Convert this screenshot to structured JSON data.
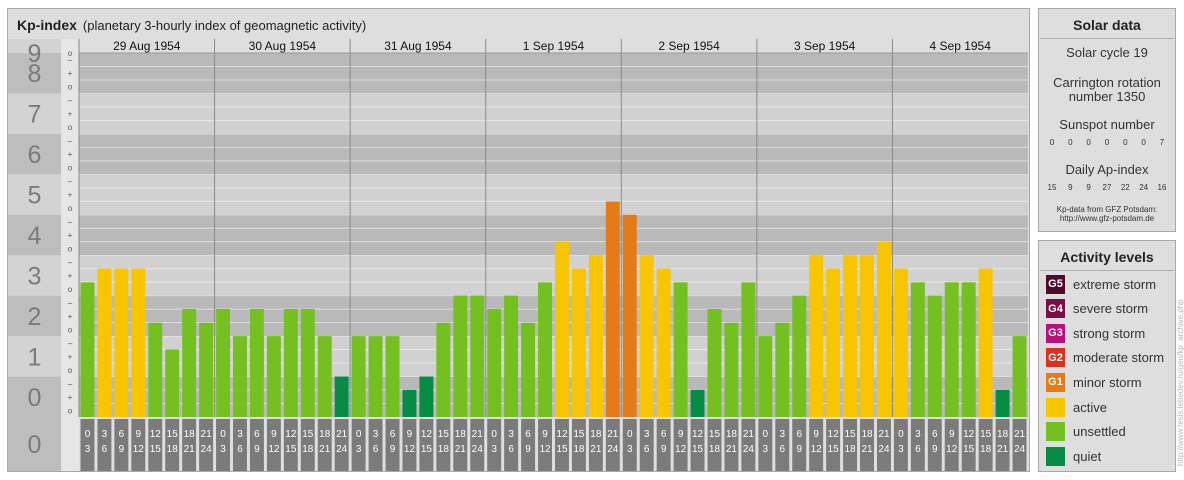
{
  "header": {
    "title": "Kp-index",
    "subtitle": "(planetary 3-hourly index of geomagnetic activity)"
  },
  "chart_data": {
    "type": "bar",
    "title": "Kp-index",
    "subtitle": "(planetary 3-hourly index of geomagnetic activity)",
    "ylim": [
      0,
      9
    ],
    "y_ticks": [
      "0",
      "1",
      "2",
      "3",
      "4",
      "5",
      "6",
      "7",
      "8",
      "9"
    ],
    "y_minor_marks": [
      "o",
      "+",
      "–"
    ],
    "days": [
      "29 Aug 1954",
      "30 Aug 1954",
      "31 Aug 1954",
      "1 Sep 1954",
      "2 Sep 1954",
      "3 Sep 1954",
      "4 Sep 1954"
    ],
    "interval_start_labels": [
      "0",
      "3",
      "6",
      "9",
      "12",
      "15",
      "18",
      "21"
    ],
    "interval_end_labels": [
      "3",
      "6",
      "9",
      "12",
      "15",
      "18",
      "21",
      "24"
    ],
    "values": [
      3.33,
      3.67,
      3.67,
      3.67,
      2.33,
      1.67,
      2.67,
      2.33,
      2.67,
      2.0,
      2.67,
      2.0,
      2.67,
      2.67,
      2.0,
      1.0,
      2.0,
      2.0,
      2.0,
      0.67,
      1.0,
      2.33,
      3.0,
      3.0,
      2.67,
      3.0,
      2.33,
      3.33,
      4.33,
      3.67,
      4.0,
      5.33,
      5.0,
      4.0,
      3.67,
      3.33,
      0.67,
      2.67,
      2.33,
      3.33,
      2.0,
      2.33,
      3.0,
      4.0,
      3.67,
      4.0,
      4.0,
      4.33,
      3.67,
      3.33,
      3.0,
      3.33,
      3.33,
      3.67,
      0.67,
      2.0
    ],
    "grid": true
  },
  "solar": {
    "title": "Solar data",
    "cycle_label": "Solar cycle 19",
    "carrington_line1": "Carrington rotation",
    "carrington_line2": "number 1350",
    "sunspot_label": "Sunspot number",
    "sunspot_values": [
      "0",
      "0",
      "0",
      "0",
      "0",
      "0",
      "7"
    ],
    "ap_label": "Daily Ap-index",
    "ap_values": [
      "15",
      "9",
      "9",
      "27",
      "22",
      "24",
      "16"
    ],
    "credit_line1": "Kp-data from GFZ Potsdam:",
    "credit_line2": "http://www.gfz-potsdam.de"
  },
  "activity": {
    "title": "Activity levels",
    "levels": [
      {
        "code": "G5",
        "label": "extreme storm",
        "color": "#4f0a2a"
      },
      {
        "code": "G4",
        "label": "severe storm",
        "color": "#7a0f48"
      },
      {
        "code": "G3",
        "label": "strong storm",
        "color": "#b8127a"
      },
      {
        "code": "G2",
        "label": "moderate storm",
        "color": "#d9321f"
      },
      {
        "code": "G1",
        "label": "minor storm",
        "color": "#e57b16"
      },
      {
        "code": "",
        "label": "active",
        "color": "#f7c600"
      },
      {
        "code": "",
        "label": "unsettled",
        "color": "#74c021"
      },
      {
        "code": "",
        "label": "quiet",
        "color": "#068c44"
      }
    ]
  },
  "watermark": "http://www.tesis.lebedev.ru/geo/kp_archive.php"
}
